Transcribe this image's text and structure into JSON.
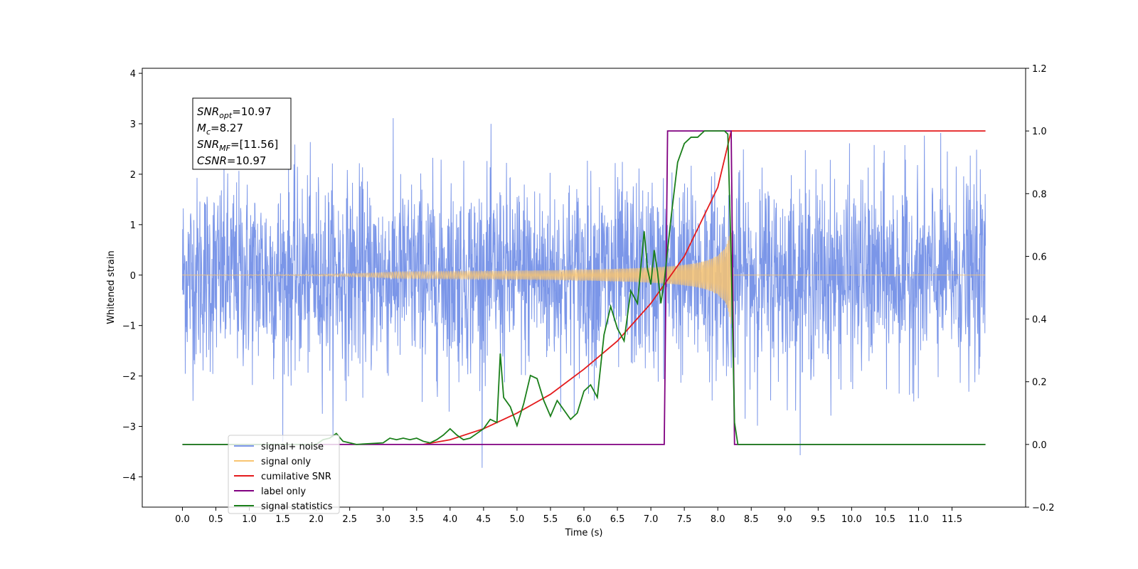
{
  "chart_data": {
    "type": "line",
    "title": "",
    "xlabel": "Time (s)",
    "ylabel": "Whitened strain",
    "xlim": [
      -0.6,
      12.6
    ],
    "x_ticks": [
      "0.0",
      "0.5",
      "1.0",
      "1.5",
      "2.0",
      "2.5",
      "3.0",
      "3.5",
      "4.0",
      "4.5",
      "5.0",
      "5.5",
      "6.0",
      "6.5",
      "7.0",
      "7.5",
      "8.0",
      "8.5",
      "9.0",
      "9.5",
      "10.0",
      "10.5",
      "11.0",
      "11.5"
    ],
    "y_left": {
      "lim": [
        -4.6,
        4.1
      ],
      "ticks": [
        "−4",
        "−3",
        "−2",
        "−1",
        "0",
        "1",
        "2",
        "3",
        "4"
      ]
    },
    "y_right": {
      "lim": [
        -0.2,
        1.2
      ],
      "ticks": [
        "−0.2",
        "0.0",
        "0.2",
        "0.4",
        "0.6",
        "0.8",
        "1.0",
        "1.2"
      ]
    },
    "grid": false,
    "legend_location": "lower-left",
    "annotation": {
      "lines": [
        {
          "sym": "SNR",
          "sub": "opt",
          "value": "=10.97"
        },
        {
          "sym": "M",
          "sub": "c",
          "value": "=8.27"
        },
        {
          "sym": "SNR",
          "sub": "MF",
          "value": "=[11.56]"
        },
        {
          "sym": "CSNR",
          "sub": "",
          "value": "=10.97"
        }
      ]
    },
    "series": [
      {
        "name": "signal+ noise",
        "color": "#7b96e8",
        "axis": "left",
        "kind": "noise",
        "x_range": [
          0.0,
          12.0
        ],
        "std": 1.0
      },
      {
        "name": "signal only",
        "color": "#f8c471",
        "axis": "left",
        "kind": "chirp",
        "merger_time": 8.2,
        "peak_amplitude": 1.05
      },
      {
        "name": "cumilative SNR",
        "color": "#e41a1c",
        "axis": "right",
        "x": [
          3.6,
          4.0,
          4.5,
          5.0,
          5.5,
          6.0,
          6.5,
          7.0,
          7.5,
          8.0,
          8.2,
          12.0
        ],
        "values": [
          0.0,
          0.015,
          0.05,
          0.1,
          0.16,
          0.24,
          0.33,
          0.45,
          0.6,
          0.82,
          1.0,
          1.0
        ]
      },
      {
        "name": "label only",
        "color": "#800080",
        "axis": "right",
        "x": [
          0.0,
          7.2,
          7.25,
          8.2,
          8.25,
          12.0
        ],
        "values": [
          0.0,
          0.0,
          1.0,
          1.0,
          0.0,
          0.0
        ]
      },
      {
        "name": "signal statistics",
        "color": "#1a7f1a",
        "axis": "right",
        "x": [
          0.0,
          2.0,
          2.1,
          2.2,
          2.3,
          2.4,
          2.5,
          2.6,
          3.0,
          3.1,
          3.2,
          3.3,
          3.4,
          3.5,
          3.6,
          3.7,
          3.8,
          3.9,
          4.0,
          4.1,
          4.2,
          4.3,
          4.4,
          4.5,
          4.6,
          4.7,
          4.75,
          4.8,
          4.9,
          5.0,
          5.1,
          5.2,
          5.3,
          5.4,
          5.5,
          5.6,
          5.7,
          5.8,
          5.9,
          6.0,
          6.1,
          6.2,
          6.3,
          6.4,
          6.5,
          6.6,
          6.7,
          6.8,
          6.9,
          6.95,
          7.0,
          7.05,
          7.1,
          7.15,
          7.2,
          7.3,
          7.4,
          7.5,
          7.6,
          7.7,
          7.8,
          7.9,
          8.0,
          8.1,
          8.15,
          8.2,
          8.25,
          8.3,
          12.0
        ],
        "values": [
          0.0,
          0.0,
          0.015,
          0.02,
          0.035,
          0.01,
          0.005,
          0.0,
          0.005,
          0.02,
          0.015,
          0.02,
          0.015,
          0.02,
          0.01,
          0.005,
          0.015,
          0.03,
          0.05,
          0.03,
          0.015,
          0.02,
          0.035,
          0.05,
          0.08,
          0.07,
          0.29,
          0.15,
          0.12,
          0.06,
          0.13,
          0.22,
          0.21,
          0.14,
          0.09,
          0.14,
          0.11,
          0.08,
          0.1,
          0.17,
          0.19,
          0.15,
          0.35,
          0.44,
          0.37,
          0.33,
          0.49,
          0.45,
          0.68,
          0.56,
          0.51,
          0.62,
          0.55,
          0.45,
          0.52,
          0.72,
          0.9,
          0.96,
          0.98,
          0.98,
          1.0,
          1.0,
          1.0,
          1.0,
          0.99,
          0.6,
          0.07,
          0.0,
          0.0
        ]
      }
    ]
  }
}
